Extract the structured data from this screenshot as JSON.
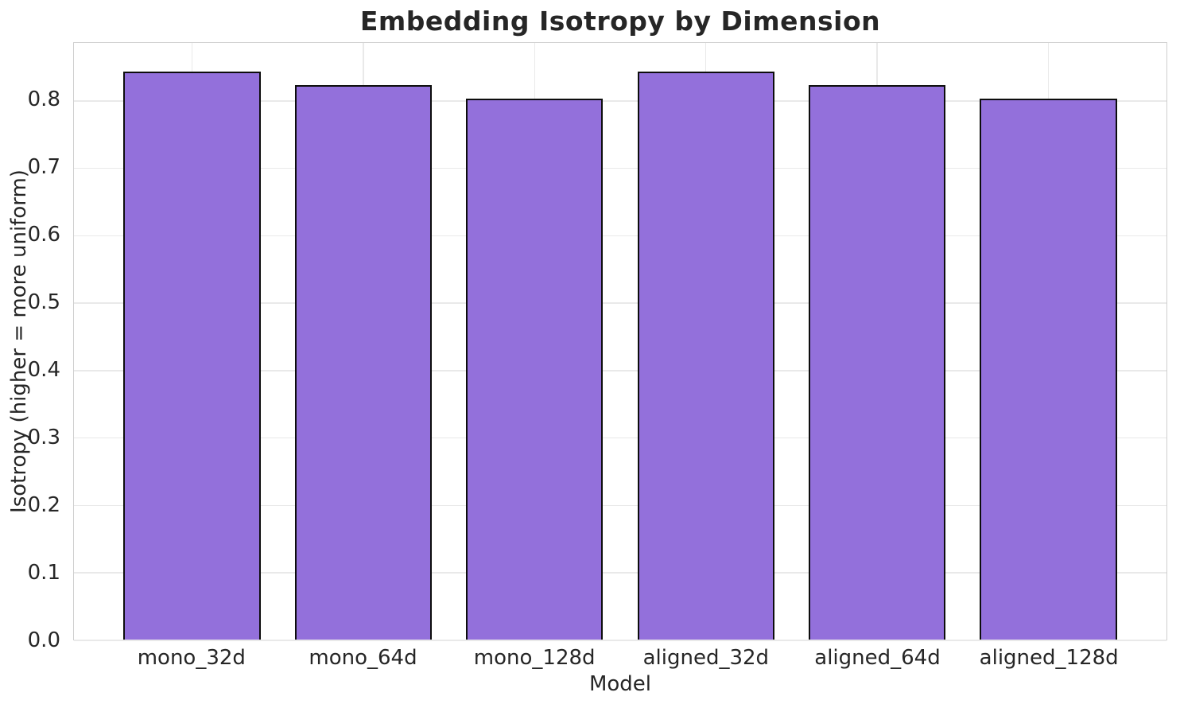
{
  "chart_data": {
    "type": "bar",
    "title": "Embedding Isotropy by Dimension",
    "xlabel": "Model",
    "ylabel": "Isotropy (higher = more uniform)",
    "categories": [
      "mono_32d",
      "mono_64d",
      "mono_128d",
      "aligned_32d",
      "aligned_64d",
      "aligned_128d"
    ],
    "values": [
      0.842,
      0.822,
      0.803,
      0.842,
      0.822,
      0.803
    ],
    "yticks": [
      0.0,
      0.1,
      0.2,
      0.3,
      0.4,
      0.5,
      0.6,
      0.7,
      0.8
    ],
    "ylim": [
      0,
      0.885
    ],
    "xlim": [
      -0.69,
      5.69
    ],
    "bar_width": 0.8,
    "grid": true,
    "legend": "none",
    "colors": {
      "bar_fill": "#9370DB",
      "bar_edge": "#0d0d0d",
      "grid_color": "#e9e9e9",
      "spine_color": "#cfcfcf",
      "text_color": "#262626"
    }
  }
}
